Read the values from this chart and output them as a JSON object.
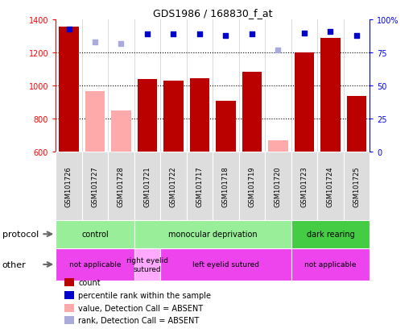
{
  "title": "GDS1986 / 168830_f_at",
  "samples": [
    "GSM101726",
    "GSM101727",
    "GSM101728",
    "GSM101721",
    "GSM101722",
    "GSM101717",
    "GSM101718",
    "GSM101719",
    "GSM101720",
    "GSM101723",
    "GSM101724",
    "GSM101725"
  ],
  "bar_values": [
    1355,
    null,
    null,
    1040,
    1030,
    1045,
    905,
    1085,
    null,
    1200,
    1290,
    935
  ],
  "absent_values": [
    null,
    968,
    848,
    null,
    null,
    null,
    null,
    null,
    665,
    null,
    null,
    null
  ],
  "percentile_rank": [
    93,
    null,
    null,
    89,
    89,
    89,
    88,
    89,
    null,
    90,
    91,
    88
  ],
  "absent_rank": [
    null,
    83,
    82,
    null,
    null,
    null,
    null,
    null,
    77,
    null,
    null,
    null
  ],
  "ylim_left": [
    600,
    1400
  ],
  "ylim_right": [
    0,
    100
  ],
  "yticks_left": [
    600,
    800,
    1000,
    1200,
    1400
  ],
  "yticks_right": [
    0,
    25,
    50,
    75,
    100
  ],
  "bar_color": "#bb0000",
  "absent_bar_color": "#ffaaaa",
  "rank_color": "#0000cc",
  "absent_rank_color": "#aaaadd",
  "protocol_groups": [
    {
      "label": "control",
      "start": 0,
      "end": 3,
      "color": "#99ee99"
    },
    {
      "label": "monocular deprivation",
      "start": 3,
      "end": 9,
      "color": "#99ee99"
    },
    {
      "label": "dark rearing",
      "start": 9,
      "end": 12,
      "color": "#44cc44"
    }
  ],
  "other_groups": [
    {
      "label": "not applicable",
      "start": 0,
      "end": 3,
      "color": "#ee44ee"
    },
    {
      "label": "right eyelid\nsutured",
      "start": 3,
      "end": 4,
      "color": "#ffaaff"
    },
    {
      "label": "left eyelid sutured",
      "start": 4,
      "end": 9,
      "color": "#ee44ee"
    },
    {
      "label": "not applicable",
      "start": 9,
      "end": 12,
      "color": "#ee44ee"
    }
  ],
  "protocol_label": "protocol",
  "other_label": "other",
  "legend_items": [
    {
      "label": "count",
      "color": "#bb0000"
    },
    {
      "label": "percentile rank within the sample",
      "color": "#0000cc"
    },
    {
      "label": "value, Detection Call = ABSENT",
      "color": "#ffaaaa"
    },
    {
      "label": "rank, Detection Call = ABSENT",
      "color": "#aaaadd"
    }
  ]
}
